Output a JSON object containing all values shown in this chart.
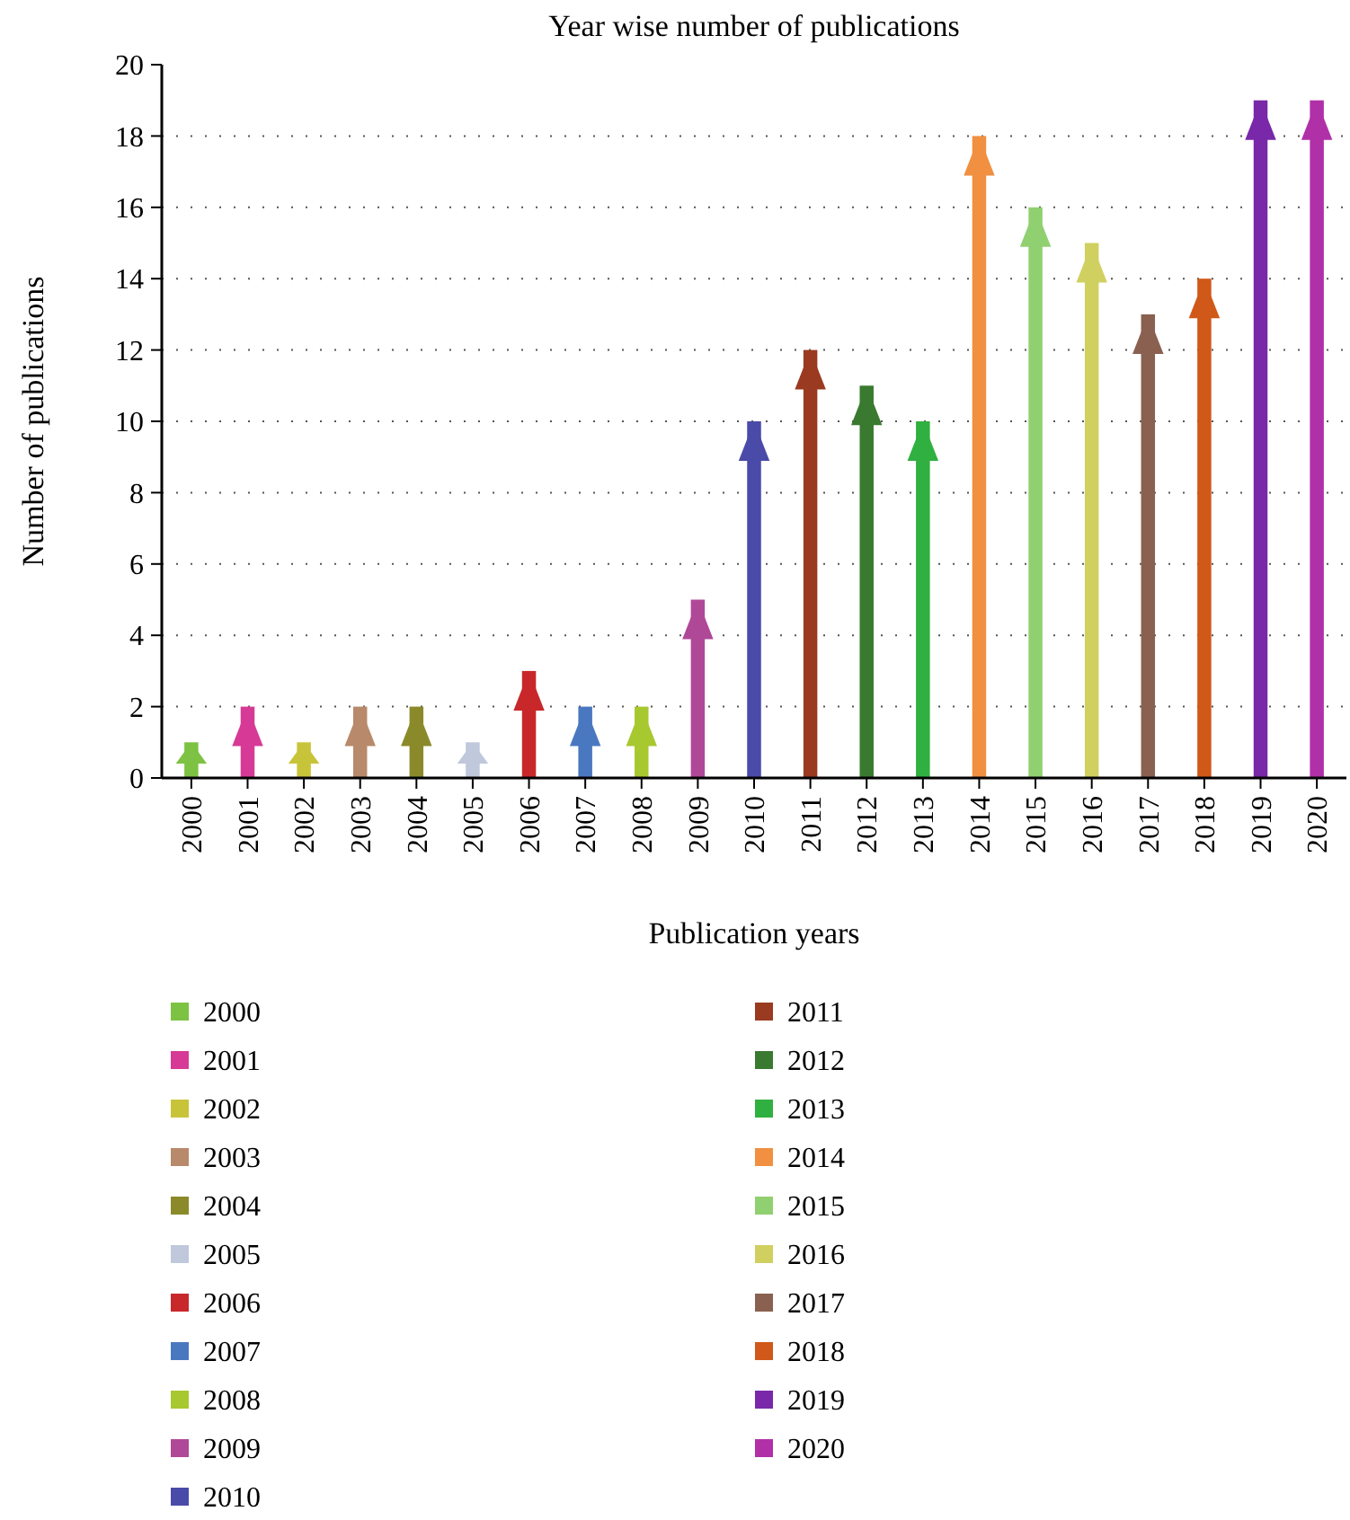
{
  "chart_data": {
    "type": "bar",
    "title": "Year wise number of publications",
    "xlabel": "Publication years",
    "ylabel": "Number of publications",
    "categories": [
      "2000",
      "2001",
      "2002",
      "2003",
      "2004",
      "2005",
      "2006",
      "2007",
      "2008",
      "2009",
      "2010",
      "2011",
      "2012",
      "2013",
      "2014",
      "2015",
      "2016",
      "2017",
      "2018",
      "2019",
      "2020"
    ],
    "series": [
      {
        "name": "2000",
        "color": "#7dc242",
        "values": [
          1,
          null,
          null,
          null,
          null,
          null,
          null,
          null,
          null,
          null,
          null,
          null,
          null,
          null,
          null,
          null,
          null,
          null,
          null,
          null,
          null
        ]
      },
      {
        "name": "2001",
        "color": "#d63a96",
        "values": [
          null,
          2,
          null,
          null,
          null,
          null,
          null,
          null,
          null,
          null,
          null,
          null,
          null,
          null,
          null,
          null,
          null,
          null,
          null,
          null,
          null
        ]
      },
      {
        "name": "2002",
        "color": "#c8c43a",
        "values": [
          null,
          null,
          1,
          null,
          null,
          null,
          null,
          null,
          null,
          null,
          null,
          null,
          null,
          null,
          null,
          null,
          null,
          null,
          null,
          null,
          null
        ]
      },
      {
        "name": "2003",
        "color": "#b8896a",
        "values": [
          null,
          null,
          null,
          2,
          null,
          null,
          null,
          null,
          null,
          null,
          null,
          null,
          null,
          null,
          null,
          null,
          null,
          null,
          null,
          null,
          null
        ]
      },
      {
        "name": "2004",
        "color": "#8a8a2a",
        "values": [
          null,
          null,
          null,
          null,
          2,
          null,
          null,
          null,
          null,
          null,
          null,
          null,
          null,
          null,
          null,
          null,
          null,
          null,
          null,
          null,
          null
        ]
      },
      {
        "name": "2005",
        "color": "#c0c8dc",
        "values": [
          null,
          null,
          null,
          null,
          null,
          1,
          null,
          null,
          null,
          null,
          null,
          null,
          null,
          null,
          null,
          null,
          null,
          null,
          null,
          null,
          null
        ]
      },
      {
        "name": "2006",
        "color": "#c8282a",
        "values": [
          null,
          null,
          null,
          null,
          null,
          null,
          3,
          null,
          null,
          null,
          null,
          null,
          null,
          null,
          null,
          null,
          null,
          null,
          null,
          null,
          null
        ]
      },
      {
        "name": "2007",
        "color": "#4a78c0",
        "values": [
          null,
          null,
          null,
          null,
          null,
          null,
          null,
          2,
          null,
          null,
          null,
          null,
          null,
          null,
          null,
          null,
          null,
          null,
          null,
          null,
          null
        ]
      },
      {
        "name": "2008",
        "color": "#a8c830",
        "values": [
          null,
          null,
          null,
          null,
          null,
          null,
          null,
          null,
          2,
          null,
          null,
          null,
          null,
          null,
          null,
          null,
          null,
          null,
          null,
          null,
          null
        ]
      },
      {
        "name": "2009",
        "color": "#b04898",
        "values": [
          null,
          null,
          null,
          null,
          null,
          null,
          null,
          null,
          null,
          5,
          null,
          null,
          null,
          null,
          null,
          null,
          null,
          null,
          null,
          null,
          null
        ]
      },
      {
        "name": "2010",
        "color": "#4a4aa8",
        "values": [
          null,
          null,
          null,
          null,
          null,
          null,
          null,
          null,
          null,
          null,
          10,
          null,
          null,
          null,
          null,
          null,
          null,
          null,
          null,
          null,
          null
        ]
      },
      {
        "name": "2011",
        "color": "#9a3a20",
        "values": [
          null,
          null,
          null,
          null,
          null,
          null,
          null,
          null,
          null,
          null,
          null,
          12,
          null,
          null,
          null,
          null,
          null,
          null,
          null,
          null,
          null
        ]
      },
      {
        "name": "2012",
        "color": "#3a7a30",
        "values": [
          null,
          null,
          null,
          null,
          null,
          null,
          null,
          null,
          null,
          null,
          null,
          null,
          11,
          null,
          null,
          null,
          null,
          null,
          null,
          null,
          null
        ]
      },
      {
        "name": "2013",
        "color": "#30b040",
        "values": [
          null,
          null,
          null,
          null,
          null,
          null,
          null,
          null,
          null,
          null,
          null,
          null,
          null,
          10,
          null,
          null,
          null,
          null,
          null,
          null,
          null
        ]
      },
      {
        "name": "2014",
        "color": "#f09040",
        "values": [
          null,
          null,
          null,
          null,
          null,
          null,
          null,
          null,
          null,
          null,
          null,
          null,
          null,
          null,
          18,
          null,
          null,
          null,
          null,
          null,
          null
        ]
      },
      {
        "name": "2015",
        "color": "#90d070",
        "values": [
          null,
          null,
          null,
          null,
          null,
          null,
          null,
          null,
          null,
          null,
          null,
          null,
          null,
          null,
          null,
          16,
          null,
          null,
          null,
          null,
          null
        ]
      },
      {
        "name": "2016",
        "color": "#d0d060",
        "values": [
          null,
          null,
          null,
          null,
          null,
          null,
          null,
          null,
          null,
          null,
          null,
          null,
          null,
          null,
          null,
          null,
          15,
          null,
          null,
          null,
          null
        ]
      },
      {
        "name": "2017",
        "color": "#8a6050",
        "values": [
          null,
          null,
          null,
          null,
          null,
          null,
          null,
          null,
          null,
          null,
          null,
          null,
          null,
          null,
          null,
          null,
          null,
          13,
          null,
          null,
          null
        ]
      },
      {
        "name": "2018",
        "color": "#d05818",
        "values": [
          null,
          null,
          null,
          null,
          null,
          null,
          null,
          null,
          null,
          null,
          null,
          null,
          null,
          null,
          null,
          null,
          null,
          null,
          14,
          null,
          null
        ]
      },
      {
        "name": "2019",
        "color": "#7828a8",
        "values": [
          null,
          null,
          null,
          null,
          null,
          null,
          null,
          null,
          null,
          null,
          null,
          null,
          null,
          null,
          null,
          null,
          null,
          null,
          null,
          19,
          null
        ]
      },
      {
        "name": "2020",
        "color": "#b030a8",
        "values": [
          null,
          null,
          null,
          null,
          null,
          null,
          null,
          null,
          null,
          null,
          null,
          null,
          null,
          null,
          null,
          null,
          null,
          null,
          null,
          null,
          19
        ]
      }
    ],
    "ylim": [
      0,
      20
    ],
    "yticks": [
      0,
      2,
      4,
      6,
      8,
      10,
      12,
      14,
      16,
      18,
      20
    ],
    "grid": "y",
    "legend": "bottom left"
  }
}
